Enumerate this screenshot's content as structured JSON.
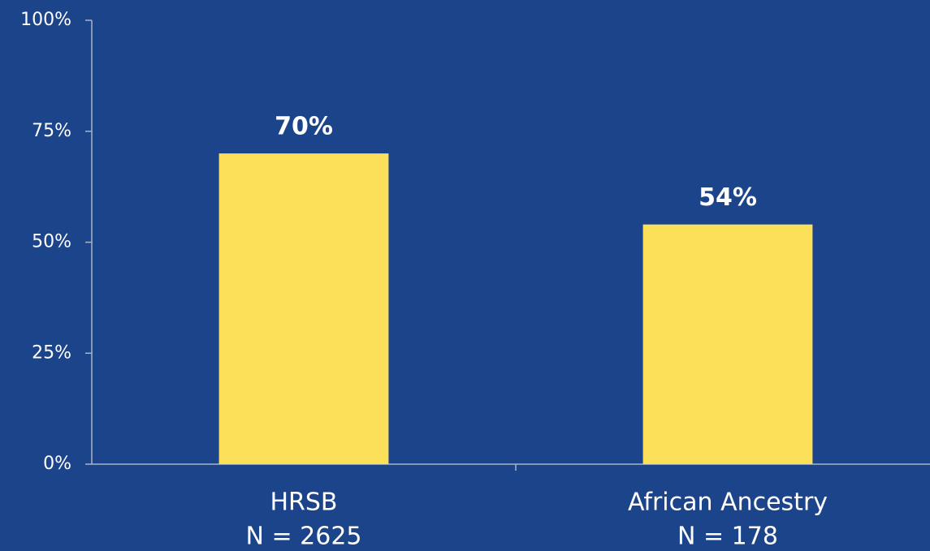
{
  "chart_data": {
    "type": "bar",
    "categories": [
      "HRSB",
      "African Ancestry"
    ],
    "category_sublabels": [
      "N = 2625",
      "N = 178"
    ],
    "values": [
      70,
      54
    ],
    "value_labels": [
      "70%",
      "54%"
    ],
    "color": "#fce05a",
    "ylim": [
      0,
      100
    ],
    "yticks": [
      {
        "value": 0,
        "label": "0%"
      },
      {
        "value": 25,
        "label": "25%"
      },
      {
        "value": 50,
        "label": "50%"
      },
      {
        "value": 75,
        "label": "75%"
      },
      {
        "value": 100,
        "label": "100%"
      }
    ],
    "grid": false
  }
}
